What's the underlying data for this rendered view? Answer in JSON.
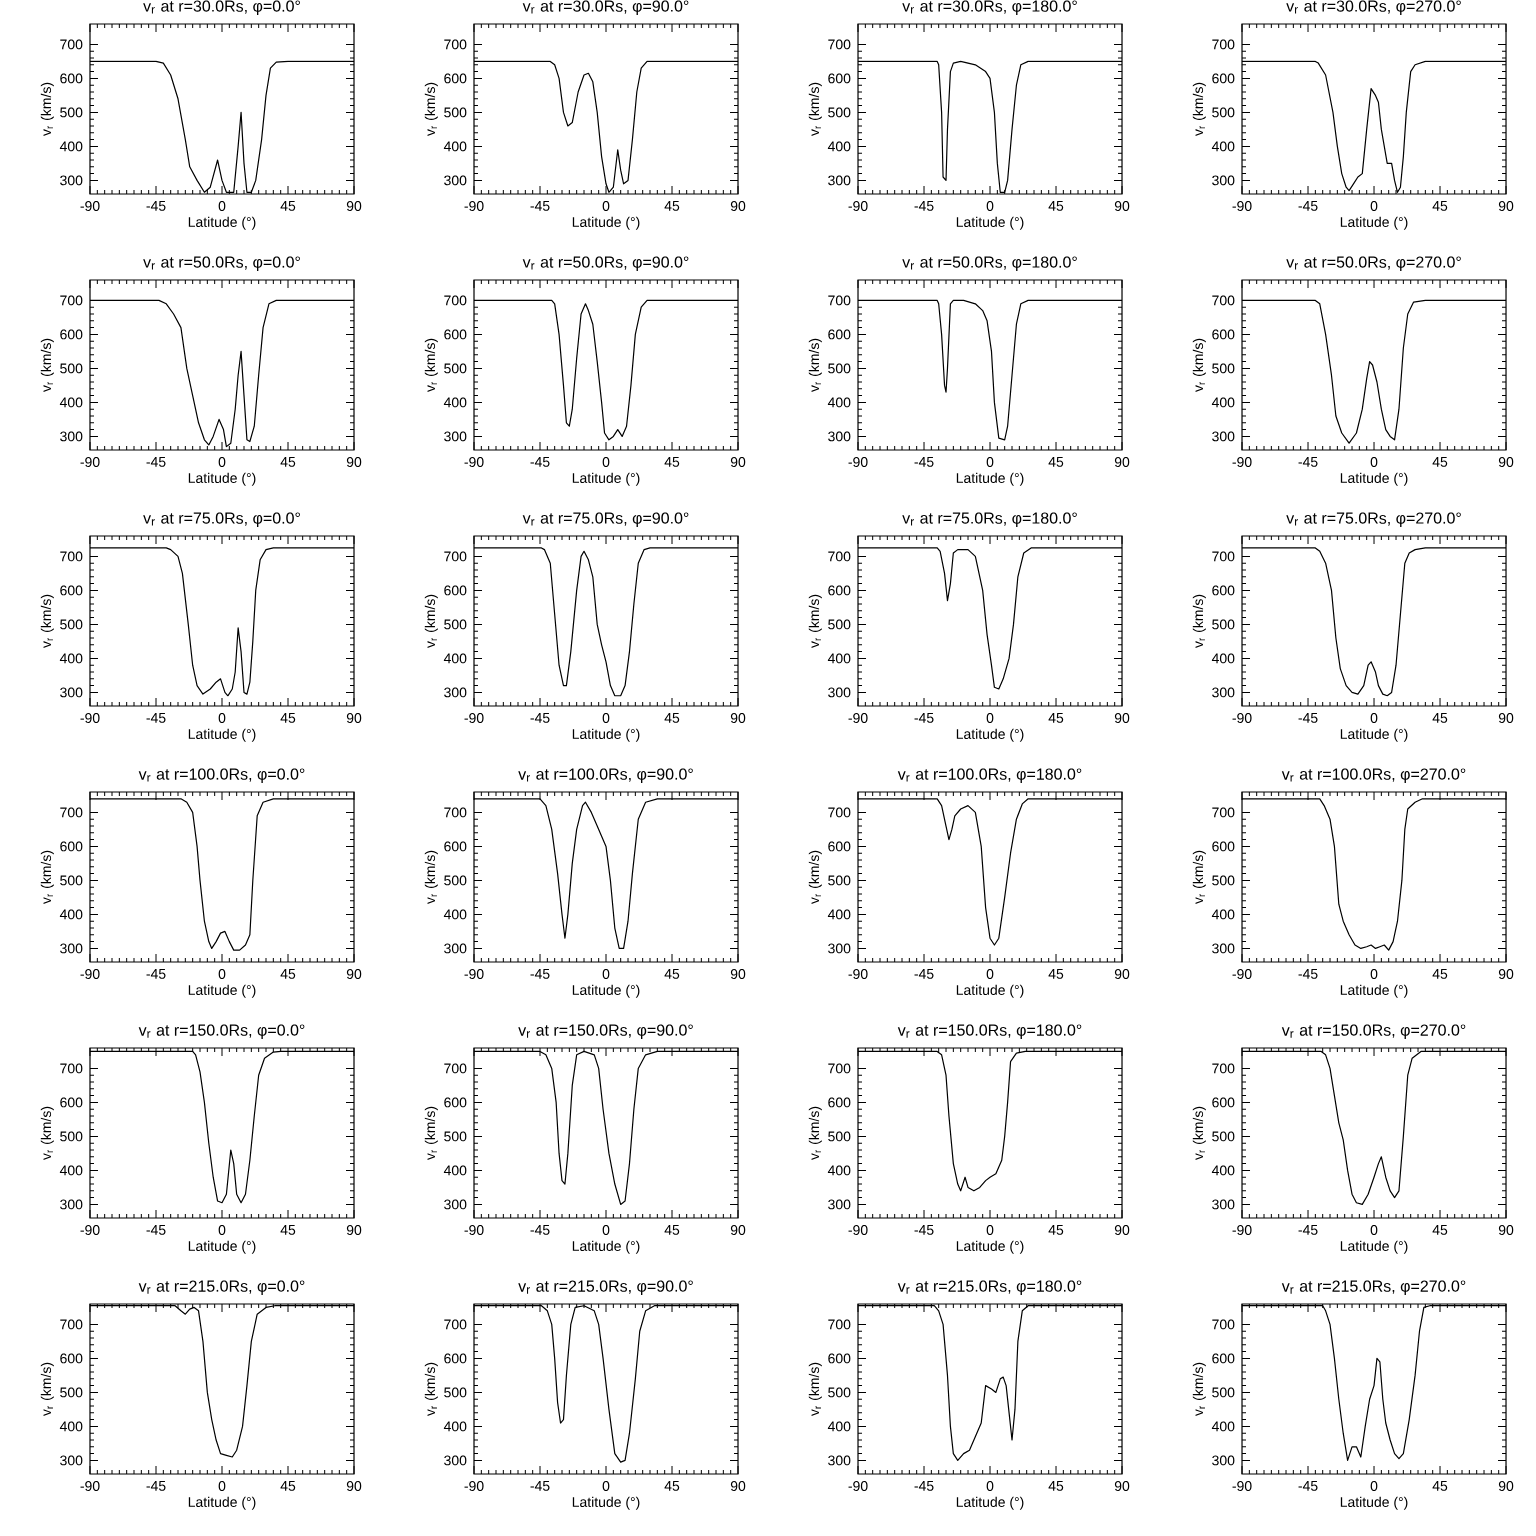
{
  "chart_data": [
    {
      "type": "line",
      "title": "v$_{r}$ at r=30.0Rs, φ=0.0°",
      "xlabel": "Latitude (°)",
      "ylabel": "v$_{r}$ (km/s)",
      "color": "#000000",
      "xlim": [
        -90,
        90
      ],
      "ylim": [
        260,
        760
      ],
      "xticks": [
        -90,
        -45,
        0,
        45,
        90
      ],
      "yticks": [
        300,
        400,
        500,
        600,
        700
      ],
      "x": [
        -90,
        -45,
        -40,
        -35,
        -30,
        -25,
        -22,
        -17,
        -12,
        -8,
        -3,
        0,
        3,
        8,
        11,
        13,
        15,
        17,
        20,
        23,
        27,
        30,
        33,
        37,
        45,
        90
      ],
      "values": [
        650,
        650,
        645,
        610,
        540,
        420,
        340,
        300,
        265,
        280,
        360,
        300,
        265,
        265,
        400,
        500,
        350,
        265,
        265,
        300,
        420,
        550,
        630,
        648,
        650,
        650
      ]
    },
    {
      "type": "line",
      "title": "v$_{r}$ at r=30.0Rs, φ=90.0°",
      "xlabel": "Latitude (°)",
      "ylabel": "v$_{r}$ (km/s)",
      "color": "#000000",
      "xlim": [
        -90,
        90
      ],
      "ylim": [
        260,
        760
      ],
      "xticks": [
        -90,
        -45,
        0,
        45,
        90
      ],
      "yticks": [
        300,
        400,
        500,
        600,
        700
      ],
      "x": [
        -90,
        -38,
        -35,
        -32,
        -29,
        -26,
        -23,
        -19,
        -15,
        -12,
        -9,
        -6,
        -3,
        0,
        2,
        5,
        8,
        10,
        12,
        15,
        18,
        21,
        24,
        28,
        90
      ],
      "values": [
        650,
        650,
        640,
        600,
        500,
        460,
        470,
        560,
        610,
        615,
        590,
        500,
        370,
        290,
        265,
        280,
        390,
        330,
        290,
        300,
        420,
        560,
        630,
        650,
        650
      ]
    },
    {
      "type": "line",
      "title": "v$_{r}$ at r=30.0Rs, φ=180.0°",
      "xlabel": "Latitude (°)",
      "ylabel": "v$_{r}$ (km/s)",
      "color": "#000000",
      "xlim": [
        -90,
        90
      ],
      "ylim": [
        260,
        760
      ],
      "xticks": [
        -90,
        -45,
        0,
        45,
        90
      ],
      "yticks": [
        300,
        400,
        500,
        600,
        700
      ],
      "x": [
        -90,
        -36,
        -35,
        -33,
        -32,
        -30,
        -29,
        -27,
        -25,
        -20,
        -10,
        -3,
        0,
        3,
        5,
        7,
        10,
        12,
        15,
        18,
        21,
        26,
        90
      ],
      "values": [
        650,
        650,
        640,
        500,
        310,
        300,
        450,
        620,
        645,
        650,
        640,
        620,
        600,
        500,
        350,
        265,
        265,
        300,
        450,
        580,
        640,
        650,
        650
      ]
    },
    {
      "type": "line",
      "title": "v$_{r}$ at r=30.0Rs, φ=270.0°",
      "xlabel": "Latitude (°)",
      "ylabel": "v$_{r}$ (km/s)",
      "color": "#000000",
      "xlim": [
        -90,
        90
      ],
      "ylim": [
        260,
        760
      ],
      "xticks": [
        -90,
        -45,
        0,
        45,
        90
      ],
      "yticks": [
        300,
        400,
        500,
        600,
        700
      ],
      "x": [
        -90,
        -40,
        -38,
        -33,
        -28,
        -25,
        -22,
        -19,
        -17,
        -14,
        -11,
        -8,
        -5,
        -2,
        1,
        3,
        5,
        7,
        9,
        12,
        14,
        16,
        18,
        20,
        22,
        25,
        28,
        35,
        90
      ],
      "values": [
        650,
        650,
        645,
        610,
        500,
        400,
        320,
        280,
        270,
        290,
        310,
        320,
        450,
        570,
        550,
        530,
        450,
        400,
        350,
        350,
        300,
        265,
        280,
        370,
        500,
        620,
        640,
        650,
        650
      ]
    },
    {
      "type": "line",
      "title": "v$_{r}$ at r=50.0Rs, φ=0.0°",
      "xlabel": "Latitude (°)",
      "ylabel": "v$_{r}$ (km/s)",
      "color": "#000000",
      "xlim": [
        -90,
        90
      ],
      "ylim": [
        260,
        760
      ],
      "xticks": [
        -90,
        -45,
        0,
        45,
        90
      ],
      "yticks": [
        300,
        400,
        500,
        600,
        700
      ],
      "x": [
        -90,
        -43,
        -38,
        -33,
        -28,
        -24,
        -20,
        -16,
        -12,
        -9,
        -6,
        -2,
        1,
        3,
        6,
        9,
        11,
        13,
        15,
        17,
        19,
        22,
        25,
        28,
        32,
        37,
        90
      ],
      "values": [
        700,
        700,
        690,
        660,
        620,
        500,
        420,
        340,
        290,
        275,
        300,
        350,
        320,
        270,
        280,
        380,
        480,
        550,
        420,
        290,
        285,
        330,
        480,
        620,
        690,
        700,
        700
      ]
    },
    {
      "type": "line",
      "title": "v$_{r}$ at r=50.0Rs, φ=90.0°",
      "xlabel": "Latitude (°)",
      "ylabel": "v$_{r}$ (km/s)",
      "color": "#000000",
      "xlim": [
        -90,
        90
      ],
      "ylim": [
        260,
        760
      ],
      "xticks": [
        -90,
        -45,
        0,
        45,
        90
      ],
      "yticks": [
        300,
        400,
        500,
        600,
        700
      ],
      "x": [
        -90,
        -37,
        -35,
        -32,
        -29,
        -27,
        -25,
        -23,
        -20,
        -17,
        -14,
        -12,
        -9,
        -6,
        -3,
        -1,
        2,
        5,
        8,
        11,
        14,
        17,
        20,
        24,
        28,
        90
      ],
      "values": [
        700,
        700,
        690,
        600,
        450,
        340,
        330,
        380,
        530,
        660,
        690,
        670,
        630,
        520,
        400,
        310,
        290,
        300,
        320,
        300,
        330,
        450,
        600,
        680,
        700,
        700
      ]
    },
    {
      "type": "line",
      "title": "v$_{r}$ at r=50.0Rs, φ=180.0°",
      "xlabel": "Latitude (°)",
      "ylabel": "v$_{r}$ (km/s)",
      "color": "#000000",
      "xlim": [
        -90,
        90
      ],
      "ylim": [
        260,
        760
      ],
      "xticks": [
        -90,
        -45,
        0,
        45,
        90
      ],
      "yticks": [
        300,
        400,
        500,
        600,
        700
      ],
      "x": [
        -90,
        -36,
        -35,
        -33,
        -31,
        -30,
        -29,
        -27,
        -25,
        -18,
        -10,
        -5,
        -2,
        1,
        3,
        6,
        10,
        12,
        15,
        18,
        21,
        26,
        90
      ],
      "values": [
        700,
        700,
        690,
        600,
        450,
        430,
        500,
        690,
        700,
        700,
        690,
        670,
        640,
        550,
        400,
        295,
        290,
        330,
        480,
        630,
        690,
        700,
        700
      ]
    },
    {
      "type": "line",
      "title": "v$_{r}$ at r=50.0Rs, φ=270.0°",
      "xlabel": "Latitude (°)",
      "ylabel": "v$_{r}$ (km/s)",
      "color": "#000000",
      "xlim": [
        -90,
        90
      ],
      "ylim": [
        260,
        760
      ],
      "xticks": [
        -90,
        -45,
        0,
        45,
        90
      ],
      "yticks": [
        300,
        400,
        500,
        600,
        700
      ],
      "x": [
        -90,
        -40,
        -37,
        -33,
        -29,
        -26,
        -22,
        -17,
        -12,
        -8,
        -5,
        -3,
        -1,
        2,
        5,
        8,
        11,
        14,
        17,
        20,
        23,
        27,
        35,
        90
      ],
      "values": [
        700,
        700,
        690,
        600,
        480,
        360,
        310,
        280,
        310,
        380,
        470,
        520,
        510,
        460,
        380,
        320,
        300,
        290,
        380,
        560,
        660,
        695,
        700,
        700
      ]
    },
    {
      "type": "line",
      "title": "v$_{r}$ at r=75.0Rs, φ=0.0°",
      "xlabel": "Latitude (°)",
      "ylabel": "v$_{r}$ (km/s)",
      "color": "#000000",
      "xlim": [
        -90,
        90
      ],
      "ylim": [
        260,
        760
      ],
      "xticks": [
        -90,
        -45,
        0,
        45,
        90
      ],
      "yticks": [
        300,
        400,
        500,
        600,
        700
      ],
      "x": [
        -90,
        -38,
        -35,
        -30,
        -27,
        -23,
        -20,
        -17,
        -13,
        -8,
        -4,
        -1,
        2,
        4,
        7,
        9,
        11,
        13,
        15,
        17,
        19,
        21,
        23,
        26,
        30,
        35,
        90
      ],
      "values": [
        725,
        725,
        720,
        700,
        650,
        500,
        380,
        320,
        295,
        310,
        330,
        340,
        300,
        290,
        310,
        360,
        490,
        420,
        300,
        295,
        330,
        450,
        600,
        690,
        720,
        725,
        725
      ]
    },
    {
      "type": "line",
      "title": "v$_{r}$ at r=75.0Rs, φ=90.0°",
      "xlabel": "Latitude (°)",
      "ylabel": "v$_{r}$ (km/s)",
      "color": "#000000",
      "xlim": [
        -90,
        90
      ],
      "ylim": [
        260,
        760
      ],
      "xticks": [
        -90,
        -45,
        0,
        45,
        90
      ],
      "yticks": [
        300,
        400,
        500,
        600,
        700
      ],
      "x": [
        -90,
        -44,
        -42,
        -38,
        -35,
        -32,
        -29,
        -27,
        -24,
        -20,
        -17,
        -15,
        -12,
        -9,
        -6,
        -3,
        0,
        3,
        6,
        10,
        13,
        16,
        19,
        22,
        26,
        30,
        90
      ],
      "values": [
        725,
        725,
        720,
        680,
        530,
        380,
        320,
        320,
        420,
        600,
        700,
        715,
        690,
        640,
        500,
        440,
        390,
        320,
        290,
        290,
        320,
        420,
        560,
        680,
        720,
        725,
        725
      ]
    },
    {
      "type": "line",
      "title": "v$_{r}$ at r=75.0Rs, φ=180.0°",
      "xlabel": "Latitude (°)",
      "ylabel": "v$_{r}$ (km/s)",
      "color": "#000000",
      "xlim": [
        -90,
        90
      ],
      "ylim": [
        260,
        760
      ],
      "xticks": [
        -90,
        -45,
        0,
        45,
        90
      ],
      "yticks": [
        300,
        400,
        500,
        600,
        700
      ],
      "x": [
        -90,
        -36,
        -34,
        -31,
        -29,
        -27,
        -25,
        -22,
        -15,
        -10,
        -5,
        -2,
        1,
        3,
        6,
        9,
        13,
        16,
        19,
        23,
        28,
        90
      ],
      "values": [
        725,
        725,
        715,
        650,
        570,
        620,
        710,
        720,
        720,
        700,
        600,
        470,
        380,
        315,
        310,
        340,
        400,
        500,
        640,
        710,
        725,
        725
      ]
    },
    {
      "type": "line",
      "title": "v$_{r}$ at r=75.0Rs, φ=270.0°",
      "xlabel": "Latitude (°)",
      "ylabel": "v$_{r}$ (km/s)",
      "color": "#000000",
      "xlim": [
        -90,
        90
      ],
      "ylim": [
        260,
        760
      ],
      "xticks": [
        -90,
        -45,
        0,
        45,
        90
      ],
      "yticks": [
        300,
        400,
        500,
        600,
        700
      ],
      "x": [
        -90,
        -40,
        -37,
        -33,
        -29,
        -26,
        -23,
        -19,
        -15,
        -11,
        -7,
        -4,
        -2,
        1,
        3,
        6,
        9,
        12,
        15,
        18,
        21,
        24,
        28,
        35,
        90
      ],
      "values": [
        725,
        725,
        715,
        680,
        600,
        460,
        370,
        320,
        300,
        295,
        320,
        380,
        390,
        360,
        320,
        295,
        290,
        300,
        380,
        530,
        680,
        710,
        720,
        725,
        725
      ]
    },
    {
      "type": "line",
      "title": "v$_{r}$ at r=100.0Rs, φ=0.0°",
      "xlabel": "Latitude (°)",
      "ylabel": "v$_{r}$ (km/s)",
      "color": "#000000",
      "xlim": [
        -90,
        90
      ],
      "ylim": [
        260,
        760
      ],
      "xticks": [
        -90,
        -45,
        0,
        45,
        90
      ],
      "yticks": [
        300,
        400,
        500,
        600,
        700
      ],
      "x": [
        -90,
        -28,
        -24,
        -20,
        -17,
        -15,
        -12,
        -9,
        -7,
        -4,
        -1,
        2,
        5,
        8,
        12,
        16,
        19,
        21,
        24,
        28,
        35,
        90
      ],
      "values": [
        740,
        740,
        730,
        700,
        600,
        500,
        380,
        320,
        300,
        320,
        345,
        350,
        320,
        295,
        295,
        310,
        340,
        500,
        690,
        730,
        740,
        740
      ]
    },
    {
      "type": "line",
      "title": "v$_{r}$ at r=100.0Rs, φ=90.0°",
      "xlabel": "Latitude (°)",
      "ylabel": "v$_{r}$ (km/s)",
      "color": "#000000",
      "xlim": [
        -90,
        90
      ],
      "ylim": [
        260,
        760
      ],
      "xticks": [
        -90,
        -45,
        0,
        45,
        90
      ],
      "yticks": [
        300,
        400,
        500,
        600,
        700
      ],
      "x": [
        -90,
        -45,
        -41,
        -37,
        -33,
        -30,
        -28,
        -26,
        -23,
        -20,
        -16,
        -14,
        -10,
        -6,
        -3,
        0,
        3,
        6,
        9,
        12,
        15,
        18,
        22,
        27,
        35,
        90
      ],
      "values": [
        740,
        740,
        720,
        650,
        520,
        400,
        330,
        400,
        550,
        650,
        720,
        730,
        700,
        660,
        630,
        600,
        500,
        360,
        300,
        300,
        380,
        520,
        680,
        730,
        740,
        740
      ]
    },
    {
      "type": "line",
      "title": "v$_{r}$ at r=100.0Rs, φ=180.0°",
      "xlabel": "Latitude (°)",
      "ylabel": "v$_{r}$ (km/s)",
      "color": "#000000",
      "xlim": [
        -90,
        90
      ],
      "ylim": [
        260,
        760
      ],
      "xticks": [
        -90,
        -45,
        0,
        45,
        90
      ],
      "yticks": [
        300,
        400,
        500,
        600,
        700
      ],
      "x": [
        -90,
        -36,
        -33,
        -30,
        -28,
        -26,
        -24,
        -20,
        -15,
        -10,
        -6,
        -3,
        0,
        3,
        6,
        10,
        14,
        18,
        22,
        26,
        90
      ],
      "values": [
        740,
        740,
        720,
        660,
        620,
        650,
        690,
        710,
        720,
        700,
        600,
        420,
        330,
        310,
        330,
        450,
        580,
        680,
        725,
        740,
        740
      ]
    },
    {
      "type": "line",
      "title": "v$_{r}$ at r=100.0Rs, φ=270.0°",
      "xlabel": "Latitude (°)",
      "ylabel": "v$_{r}$ (km/s)",
      "color": "#000000",
      "xlim": [
        -90,
        90
      ],
      "ylim": [
        260,
        760
      ],
      "xticks": [
        -90,
        -45,
        0,
        45,
        90
      ],
      "yticks": [
        300,
        400,
        500,
        600,
        700
      ],
      "x": [
        -90,
        -37,
        -34,
        -30,
        -27,
        -24,
        -21,
        -17,
        -13,
        -9,
        -5,
        -2,
        1,
        4,
        7,
        10,
        13,
        16,
        19,
        21,
        23,
        28,
        33,
        90
      ],
      "values": [
        740,
        740,
        720,
        680,
        600,
        430,
        380,
        340,
        310,
        300,
        305,
        310,
        300,
        305,
        310,
        295,
        320,
        380,
        500,
        650,
        710,
        730,
        740,
        740
      ]
    },
    {
      "type": "line",
      "title": "v$_{r}$ at r=150.0Rs, φ=0.0°",
      "xlabel": "Latitude (°)",
      "ylabel": "v$_{r}$ (km/s)",
      "color": "#000000",
      "xlim": [
        -90,
        90
      ],
      "ylim": [
        260,
        760
      ],
      "xticks": [
        -90,
        -45,
        0,
        45,
        90
      ],
      "yticks": [
        300,
        400,
        500,
        600,
        700
      ],
      "x": [
        -90,
        -20,
        -18,
        -15,
        -12,
        -9,
        -6,
        -3,
        0,
        3,
        6,
        8,
        10,
        13,
        16,
        19,
        22,
        25,
        29,
        35,
        40,
        90
      ],
      "values": [
        750,
        750,
        740,
        690,
        600,
        480,
        380,
        310,
        305,
        330,
        460,
        420,
        330,
        305,
        330,
        430,
        560,
        680,
        730,
        748,
        750,
        750
      ]
    },
    {
      "type": "line",
      "title": "v$_{r}$ at r=150.0Rs, φ=90.0°",
      "xlabel": "Latitude (°)",
      "ylabel": "v$_{r}$ (km/s)",
      "color": "#000000",
      "xlim": [
        -90,
        90
      ],
      "ylim": [
        260,
        760
      ],
      "xticks": [
        -90,
        -45,
        0,
        45,
        90
      ],
      "yticks": [
        300,
        400,
        500,
        600,
        700
      ],
      "x": [
        -90,
        -45,
        -41,
        -37,
        -34,
        -32,
        -30,
        -28,
        -26,
        -23,
        -20,
        -15,
        -8,
        -5,
        -2,
        2,
        6,
        10,
        13,
        16,
        19,
        22,
        27,
        35,
        90
      ],
      "values": [
        750,
        750,
        740,
        700,
        600,
        450,
        370,
        360,
        450,
        650,
        740,
        750,
        740,
        700,
        580,
        450,
        360,
        300,
        310,
        420,
        580,
        700,
        740,
        750,
        750
      ]
    },
    {
      "type": "line",
      "title": "v$_{r}$ at r=150.0Rs, φ=180.0°",
      "xlabel": "Latitude (°)",
      "ylabel": "v$_{r}$ (km/s)",
      "color": "#000000",
      "xlim": [
        -90,
        90
      ],
      "ylim": [
        260,
        760
      ],
      "xticks": [
        -90,
        -45,
        0,
        45,
        90
      ],
      "yticks": [
        300,
        400,
        500,
        600,
        700
      ],
      "x": [
        -90,
        -36,
        -33,
        -30,
        -28,
        -25,
        -22,
        -20,
        -17,
        -15,
        -11,
        -7,
        -3,
        0,
        4,
        8,
        10,
        12,
        14,
        18,
        24,
        90
      ],
      "values": [
        750,
        750,
        740,
        680,
        560,
        420,
        360,
        340,
        380,
        350,
        340,
        350,
        370,
        380,
        390,
        430,
        500,
        600,
        720,
        745,
        750,
        750
      ]
    },
    {
      "type": "line",
      "title": "v$_{r}$ at r=150.0Rs, φ=270.0°",
      "xlabel": "Latitude (°)",
      "ylabel": "v$_{r}$ (km/s)",
      "color": "#000000",
      "xlim": [
        -90,
        90
      ],
      "ylim": [
        260,
        760
      ],
      "xticks": [
        -90,
        -45,
        0,
        45,
        90
      ],
      "yticks": [
        300,
        400,
        500,
        600,
        700
      ],
      "x": [
        -90,
        -36,
        -33,
        -30,
        -27,
        -24,
        -21,
        -18,
        -15,
        -12,
        -8,
        -4,
        0,
        3,
        5,
        8,
        11,
        14,
        17,
        20,
        23,
        26,
        32,
        90
      ],
      "values": [
        750,
        750,
        740,
        700,
        620,
        540,
        490,
        400,
        330,
        305,
        300,
        330,
        380,
        420,
        440,
        380,
        340,
        320,
        340,
        500,
        680,
        730,
        750,
        750
      ]
    },
    {
      "type": "line",
      "title": "v$_{r}$ at r=215.0Rs, φ=0.0°",
      "xlabel": "Latitude (°)",
      "ylabel": "v$_{r}$ (km/s)",
      "color": "#000000",
      "xlim": [
        -90,
        90
      ],
      "ylim": [
        260,
        760
      ],
      "xticks": [
        -90,
        -45,
        0,
        45,
        90
      ],
      "yticks": [
        300,
        400,
        500,
        600,
        700
      ],
      "x": [
        -90,
        -32,
        -28,
        -25,
        -22,
        -19,
        -16,
        -13,
        -10,
        -7,
        -4,
        -1,
        3,
        7,
        10,
        14,
        17,
        20,
        24,
        30,
        36,
        90
      ],
      "values": [
        755,
        755,
        740,
        730,
        745,
        750,
        740,
        650,
        500,
        420,
        360,
        320,
        315,
        310,
        330,
        400,
        520,
        650,
        730,
        750,
        755,
        755
      ]
    },
    {
      "type": "line",
      "title": "v$_{r}$ at r=215.0Rs, φ=90.0°",
      "xlabel": "Latitude (°)",
      "ylabel": "v$_{r}$ (km/s)",
      "color": "#000000",
      "xlim": [
        -90,
        90
      ],
      "ylim": [
        260,
        760
      ],
      "xticks": [
        -90,
        -45,
        0,
        45,
        90
      ],
      "yticks": [
        300,
        400,
        500,
        600,
        700
      ],
      "x": [
        -90,
        -44,
        -40,
        -37,
        -35,
        -33,
        -31,
        -29,
        -27,
        -24,
        -21,
        -15,
        -8,
        -5,
        -2,
        2,
        6,
        10,
        13,
        16,
        20,
        23,
        27,
        33,
        90
      ],
      "values": [
        755,
        755,
        740,
        700,
        600,
        470,
        410,
        420,
        550,
        700,
        750,
        755,
        740,
        700,
        600,
        450,
        320,
        295,
        300,
        380,
        540,
        680,
        740,
        755,
        755
      ]
    },
    {
      "type": "line",
      "title": "v$_{r}$ at r=215.0Rs, φ=180.0°",
      "xlabel": "Latitude (°)",
      "ylabel": "v$_{r}$ (km/s)",
      "color": "#000000",
      "xlim": [
        -90,
        90
      ],
      "ylim": [
        260,
        760
      ],
      "xticks": [
        -90,
        -45,
        0,
        45,
        90
      ],
      "yticks": [
        300,
        400,
        500,
        600,
        700
      ],
      "x": [
        -90,
        -38,
        -35,
        -32,
        -29,
        -27,
        -25,
        -22,
        -18,
        -14,
        -10,
        -6,
        -3,
        1,
        4,
        7,
        9,
        11,
        13,
        15,
        17,
        19,
        22,
        26,
        90
      ],
      "values": [
        755,
        755,
        740,
        700,
        550,
        400,
        320,
        300,
        320,
        330,
        370,
        410,
        520,
        510,
        500,
        540,
        545,
        520,
        440,
        360,
        450,
        650,
        740,
        755,
        755
      ]
    },
    {
      "type": "line",
      "title": "v$_{r}$ at r=215.0Rs, φ=270.0°",
      "xlabel": "Latitude (°)",
      "ylabel": "v$_{r}$ (km/s)",
      "color": "#000000",
      "xlim": [
        -90,
        90
      ],
      "ylim": [
        260,
        760
      ],
      "xticks": [
        -90,
        -45,
        0,
        45,
        90
      ],
      "yticks": [
        300,
        400,
        500,
        600,
        700
      ],
      "x": [
        -90,
        -35,
        -33,
        -30,
        -27,
        -24,
        -21,
        -18,
        -15,
        -12,
        -9,
        -6,
        -3,
        0,
        2,
        4,
        6,
        8,
        11,
        14,
        17,
        20,
        24,
        28,
        31,
        34,
        38,
        90
      ],
      "values": [
        755,
        755,
        740,
        700,
        600,
        480,
        380,
        300,
        340,
        340,
        310,
        400,
        480,
        520,
        600,
        590,
        480,
        410,
        360,
        320,
        305,
        320,
        420,
        550,
        680,
        750,
        755,
        755
      ]
    }
  ]
}
